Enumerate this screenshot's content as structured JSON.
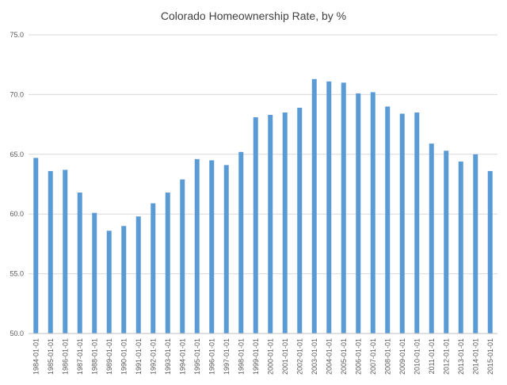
{
  "chart_data": {
    "type": "bar",
    "title": "Colorado Homeownership Rate, by %",
    "xlabel": "",
    "ylabel": "",
    "ylim": [
      50.0,
      75.0
    ],
    "yticks": [
      "50.0",
      "55.0",
      "60.0",
      "65.0",
      "70.0",
      "75.0"
    ],
    "grid": true,
    "legend": "none",
    "bar_color": "#5b9bd5",
    "categories": [
      "1984-01-01",
      "1985-01-01",
      "1986-01-01",
      "1987-01-01",
      "1988-01-01",
      "1989-01-01",
      "1990-01-01",
      "1991-01-01",
      "1992-01-01",
      "1993-01-01",
      "1994-01-01",
      "1995-01-01",
      "1996-01-01",
      "1997-01-01",
      "1998-01-01",
      "1999-01-01",
      "2000-01-01",
      "2001-01-01",
      "2002-01-01",
      "2003-01-01",
      "2004-01-01",
      "2005-01-01",
      "2006-01-01",
      "2007-01-01",
      "2008-01-01",
      "2009-01-01",
      "2010-01-01",
      "2011-01-01",
      "2012-01-01",
      "2013-01-01",
      "2014-01-01",
      "2015-01-01"
    ],
    "values": [
      64.7,
      63.6,
      63.7,
      61.8,
      60.1,
      58.6,
      59.0,
      59.8,
      60.9,
      61.8,
      62.9,
      64.6,
      64.5,
      64.1,
      65.2,
      68.1,
      68.3,
      68.5,
      68.9,
      71.3,
      71.1,
      71.0,
      70.1,
      70.2,
      69.0,
      68.4,
      68.5,
      65.9,
      65.3,
      64.4,
      65.0,
      63.6
    ]
  }
}
